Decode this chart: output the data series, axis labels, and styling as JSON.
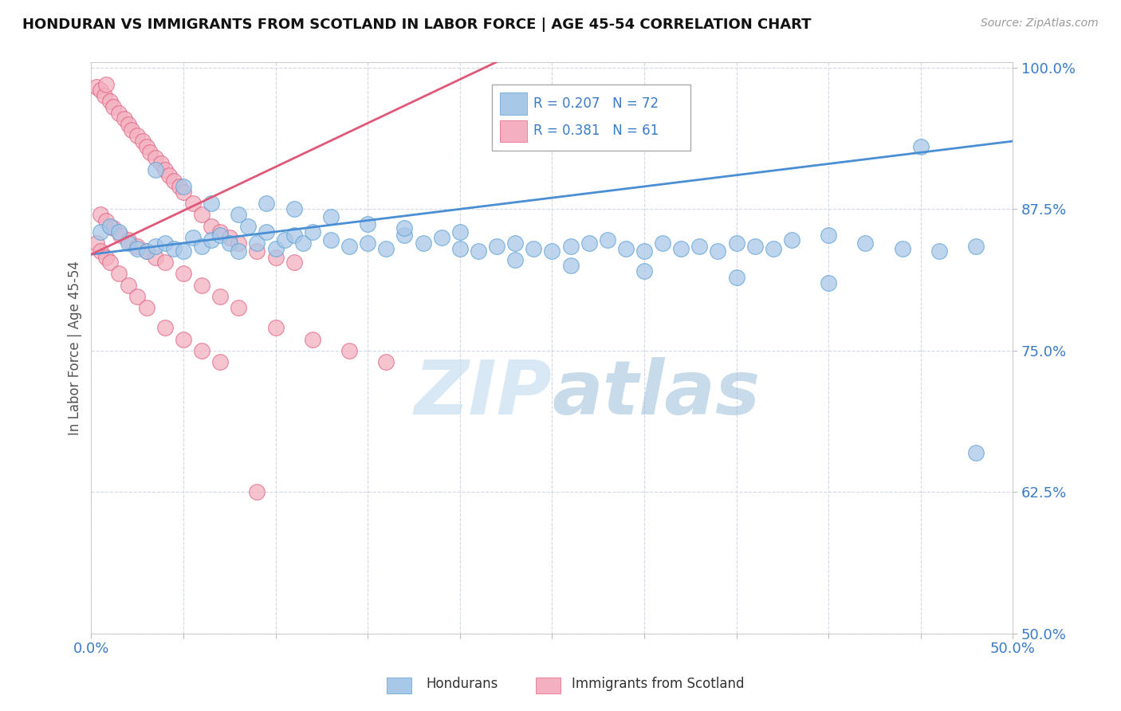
{
  "title": "HONDURAN VS IMMIGRANTS FROM SCOTLAND IN LABOR FORCE | AGE 45-54 CORRELATION CHART",
  "source": "Source: ZipAtlas.com",
  "ylabel": "In Labor Force | Age 45-54",
  "xlim": [
    0.0,
    0.5
  ],
  "ylim": [
    0.5,
    1.005
  ],
  "xtick_positions": [
    0.0,
    0.05,
    0.1,
    0.15,
    0.2,
    0.25,
    0.3,
    0.35,
    0.4,
    0.45,
    0.5
  ],
  "xticklabels": [
    "0.0%",
    "",
    "",
    "",
    "",
    "",
    "",
    "",
    "",
    "",
    "50.0%"
  ],
  "ytick_positions": [
    0.5,
    0.625,
    0.75,
    0.875,
    1.0
  ],
  "yticklabels": [
    "50.0%",
    "62.5%",
    "75.0%",
    "87.5%",
    "100.0%"
  ],
  "blue_color": "#a8c8e8",
  "pink_color": "#f4b0c0",
  "blue_edge_color": "#5a9fd4",
  "pink_edge_color": "#e06080",
  "blue_line_color": "#4a8fd4",
  "pink_line_color": "#e05878",
  "R_blue": 0.207,
  "N_blue": 72,
  "R_pink": 0.381,
  "N_pink": 61,
  "watermark": "ZIPatlas",
  "watermark_color_zip": "#c8dff0",
  "watermark_color_atlas": "#90b8d8",
  "blue_trend_x": [
    0.0,
    0.5
  ],
  "blue_trend_y": [
    0.835,
    0.935
  ],
  "pink_trend_x": [
    0.0,
    0.22
  ],
  "pink_trend_y": [
    0.835,
    1.005
  ]
}
